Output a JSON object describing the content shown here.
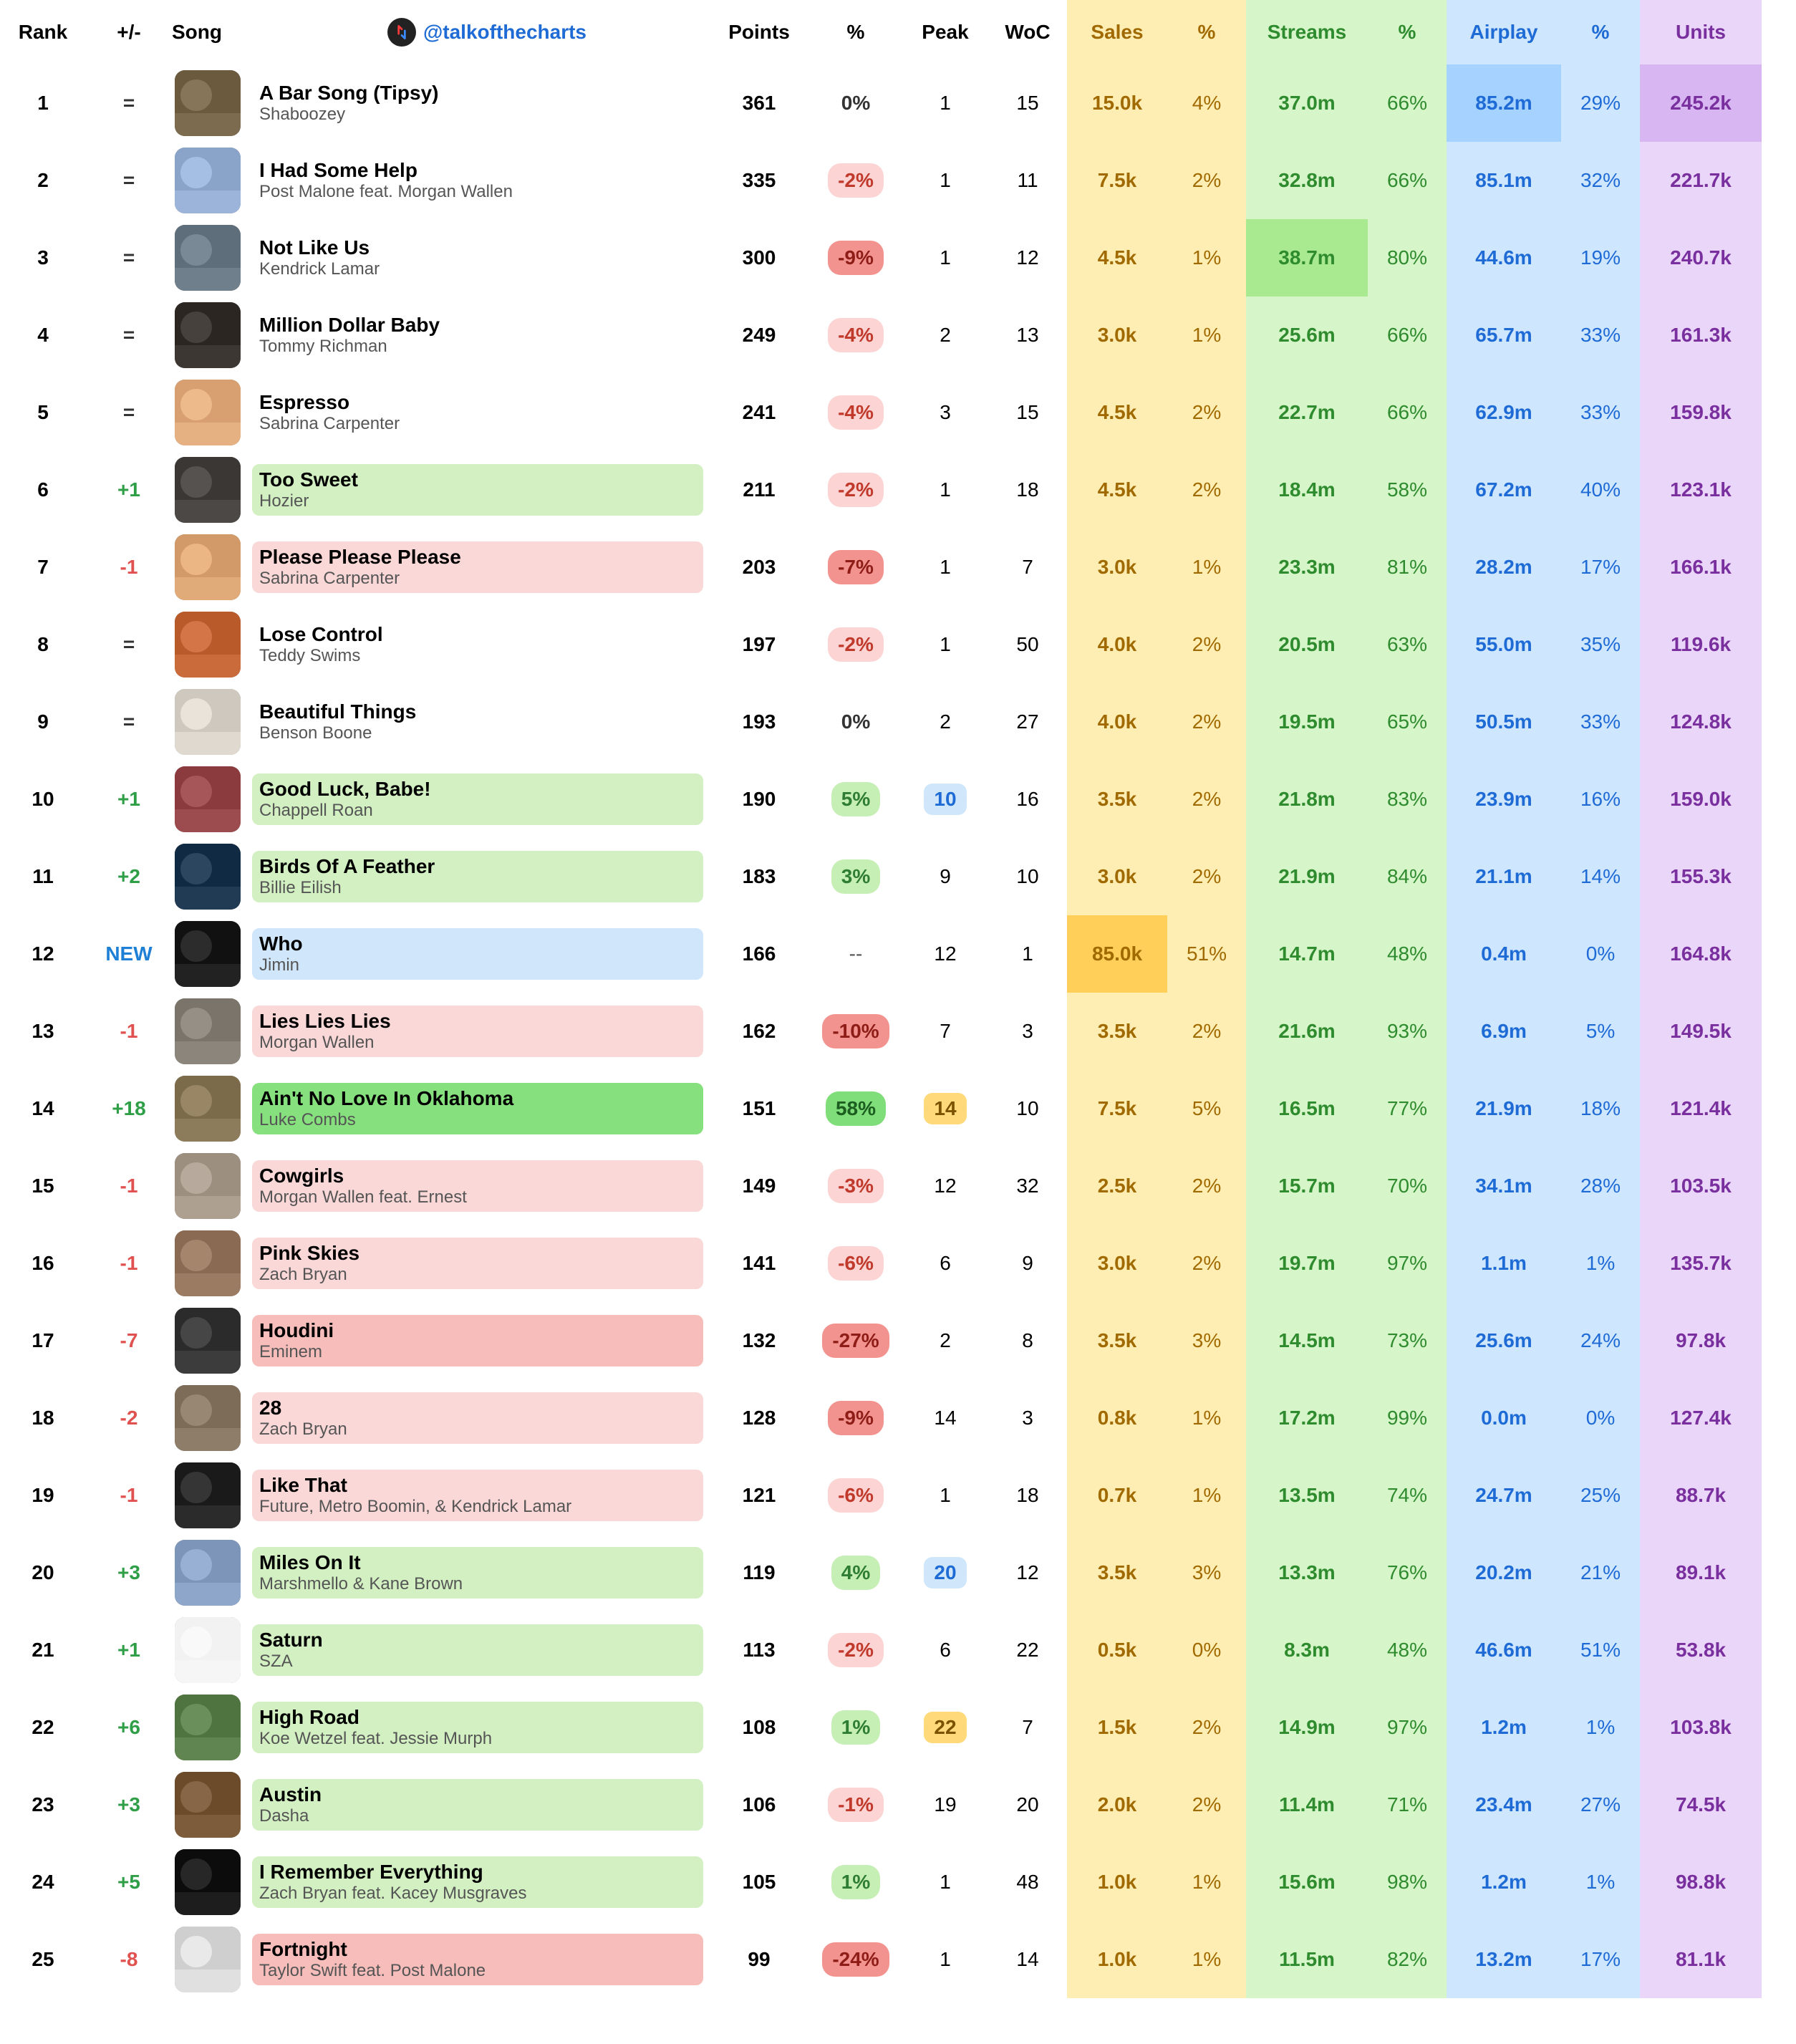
{
  "handle": "@talkofthecharts",
  "columns": {
    "rank": "Rank",
    "plus": "+/-",
    "song": "Song",
    "points": "Points",
    "pct": "%",
    "peak": "Peak",
    "woc": "WoC",
    "sales": "Sales",
    "salesp": "%",
    "streams": "Streams",
    "streamsp": "%",
    "airplay": "Airplay",
    "airplayp": "%",
    "units": "Units"
  },
  "colors": {
    "up": "#2e9e47",
    "down": "#e0524f",
    "new": "#1e7fd6",
    "neutral": "#333333",
    "pct_up_bg": "#c6efb6",
    "pct_up_strong_bg": "#7fdd7a",
    "pct_down_bg": "#fcd4d4",
    "pct_down_strong_bg": "#f2938f",
    "pct_zero": "#333333",
    "song_up_bg": "#d2f0c2",
    "song_up_strong_bg": "#87e07e",
    "song_down_bg": "#fbd8d8",
    "song_down_strong_bg": "#f6bdbb",
    "song_new_bg": "#cfe6fb",
    "peak_new_bg": "#cfe6fb",
    "peak_peak_bg": "#ffd97a",
    "sales_bg": "#ffeeb3",
    "streams_bg": "#d6f5c9",
    "airplay_bg": "#cfe6ff",
    "units_bg": "#e9d6f9",
    "sales_txt": "#a06a00",
    "streams_txt": "#2e8b2e",
    "airplay_txt": "#1e6bd6",
    "units_txt": "#7a2f9e",
    "sales_strong": "#ffcf5a",
    "streams_strong": "#a9e98f",
    "airplay_strong": "#a5d2ff",
    "units_strong": "#d7b6f2",
    "body_text": "#333333"
  },
  "covers": [
    "#6b5a3e",
    "#8aa3c8",
    "#5e6e7a",
    "#2b2622",
    "#d8a070",
    "#3b3734",
    "#d29a68",
    "#b85a2a",
    "#cfc8bf",
    "#8b3b3e",
    "#102a43",
    "#111111",
    "#7a746b",
    "#7c6b4a",
    "#9c8f80",
    "#8a6a52",
    "#2b2b2b",
    "#7d6c58",
    "#1a1a1a",
    "#7c95b8",
    "#f2f2f2",
    "#4f743f",
    "#6b4b2a",
    "#0c0c0c",
    "#cfcfcf"
  ],
  "rows": [
    {
      "rank": 1,
      "chg": "=",
      "title": "A Bar Song (Tipsy)",
      "artist": "Shaboozey",
      "points": 361,
      "pct": "0%",
      "pct_kind": "zero",
      "peak": 1,
      "woc": 15,
      "sales": "15.0k",
      "salesp": "4%",
      "streams": "37.0m",
      "streamsp": "66%",
      "airplay": "85.2m",
      "airplayp": "29%",
      "units": "245.2k",
      "hl": {
        "airplay": true,
        "units": true
      }
    },
    {
      "rank": 2,
      "chg": "=",
      "title": "I Had Some Help",
      "artist": "Post Malone feat. Morgan Wallen",
      "points": 335,
      "pct": "-2%",
      "pct_kind": "down",
      "peak": 1,
      "woc": 11,
      "sales": "7.5k",
      "salesp": "2%",
      "streams": "32.8m",
      "streamsp": "66%",
      "airplay": "85.1m",
      "airplayp": "32%",
      "units": "221.7k"
    },
    {
      "rank": 3,
      "chg": "=",
      "title": "Not Like Us",
      "artist": "Kendrick Lamar",
      "points": 300,
      "pct": "-9%",
      "pct_kind": "down-strong",
      "peak": 1,
      "woc": 12,
      "sales": "4.5k",
      "salesp": "1%",
      "streams": "38.7m",
      "streamsp": "80%",
      "airplay": "44.6m",
      "airplayp": "19%",
      "units": "240.7k",
      "hl": {
        "streams": true
      }
    },
    {
      "rank": 4,
      "chg": "=",
      "title": "Million Dollar Baby",
      "artist": "Tommy Richman",
      "points": 249,
      "pct": "-4%",
      "pct_kind": "down",
      "peak": 2,
      "woc": 13,
      "sales": "3.0k",
      "salesp": "1%",
      "streams": "25.6m",
      "streamsp": "66%",
      "airplay": "65.7m",
      "airplayp": "33%",
      "units": "161.3k"
    },
    {
      "rank": 5,
      "chg": "=",
      "title": "Espresso",
      "artist": "Sabrina Carpenter",
      "points": 241,
      "pct": "-4%",
      "pct_kind": "down",
      "peak": 3,
      "woc": 15,
      "sales": "4.5k",
      "salesp": "2%",
      "streams": "22.7m",
      "streamsp": "66%",
      "airplay": "62.9m",
      "airplayp": "33%",
      "units": "159.8k"
    },
    {
      "rank": 6,
      "chg": "+1",
      "title": "Too Sweet",
      "artist": "Hozier",
      "points": 211,
      "pct": "-2%",
      "pct_kind": "down",
      "peak": 1,
      "woc": 18,
      "sales": "4.5k",
      "salesp": "2%",
      "streams": "18.4m",
      "streamsp": "58%",
      "airplay": "67.2m",
      "airplayp": "40%",
      "units": "123.1k",
      "song_bg": "up"
    },
    {
      "rank": 7,
      "chg": "-1",
      "title": "Please Please Please",
      "artist": "Sabrina Carpenter",
      "points": 203,
      "pct": "-7%",
      "pct_kind": "down-strong",
      "peak": 1,
      "woc": 7,
      "sales": "3.0k",
      "salesp": "1%",
      "streams": "23.3m",
      "streamsp": "81%",
      "airplay": "28.2m",
      "airplayp": "17%",
      "units": "166.1k",
      "song_bg": "down"
    },
    {
      "rank": 8,
      "chg": "=",
      "title": "Lose Control",
      "artist": "Teddy Swims",
      "points": 197,
      "pct": "-2%",
      "pct_kind": "down",
      "peak": 1,
      "woc": 50,
      "sales": "4.0k",
      "salesp": "2%",
      "streams": "20.5m",
      "streamsp": "63%",
      "airplay": "55.0m",
      "airplayp": "35%",
      "units": "119.6k"
    },
    {
      "rank": 9,
      "chg": "=",
      "title": "Beautiful Things",
      "artist": "Benson Boone",
      "points": 193,
      "pct": "0%",
      "pct_kind": "zero",
      "peak": 2,
      "woc": 27,
      "sales": "4.0k",
      "salesp": "2%",
      "streams": "19.5m",
      "streamsp": "65%",
      "airplay": "50.5m",
      "airplayp": "33%",
      "units": "124.8k"
    },
    {
      "rank": 10,
      "chg": "+1",
      "title": "Good Luck, Babe!",
      "artist": "Chappell Roan",
      "points": 190,
      "pct": "5%",
      "pct_kind": "up",
      "peak": 10,
      "peak_kind": "new",
      "woc": 16,
      "sales": "3.5k",
      "salesp": "2%",
      "streams": "21.8m",
      "streamsp": "83%",
      "airplay": "23.9m",
      "airplayp": "16%",
      "units": "159.0k",
      "song_bg": "up"
    },
    {
      "rank": 11,
      "chg": "+2",
      "title": "Birds Of A Feather",
      "artist": "Billie Eilish",
      "points": 183,
      "pct": "3%",
      "pct_kind": "up",
      "peak": 9,
      "woc": 10,
      "sales": "3.0k",
      "salesp": "2%",
      "streams": "21.9m",
      "streamsp": "84%",
      "airplay": "21.1m",
      "airplayp": "14%",
      "units": "155.3k",
      "song_bg": "up"
    },
    {
      "rank": 12,
      "chg": "NEW",
      "title": "Who",
      "artist": "Jimin",
      "points": 166,
      "pct": "--",
      "pct_kind": "none",
      "peak": 12,
      "woc": 1,
      "sales": "85.0k",
      "salesp": "51%",
      "streams": "14.7m",
      "streamsp": "48%",
      "airplay": "0.4m",
      "airplayp": "0%",
      "units": "164.8k",
      "song_bg": "new",
      "hl": {
        "sales": true
      }
    },
    {
      "rank": 13,
      "chg": "-1",
      "title": "Lies Lies Lies",
      "artist": "Morgan Wallen",
      "points": 162,
      "pct": "-10%",
      "pct_kind": "down-strong",
      "peak": 7,
      "woc": 3,
      "sales": "3.5k",
      "salesp": "2%",
      "streams": "21.6m",
      "streamsp": "93%",
      "airplay": "6.9m",
      "airplayp": "5%",
      "units": "149.5k",
      "song_bg": "down"
    },
    {
      "rank": 14,
      "chg": "+18",
      "title": "Ain't No Love In Oklahoma",
      "artist": "Luke Combs",
      "points": 151,
      "pct": "58%",
      "pct_kind": "up-strong",
      "peak": 14,
      "peak_kind": "peak",
      "woc": 10,
      "sales": "7.5k",
      "salesp": "5%",
      "streams": "16.5m",
      "streamsp": "77%",
      "airplay": "21.9m",
      "airplayp": "18%",
      "units": "121.4k",
      "song_bg": "up-strong"
    },
    {
      "rank": 15,
      "chg": "-1",
      "title": "Cowgirls",
      "artist": "Morgan Wallen feat. Ernest",
      "points": 149,
      "pct": "-3%",
      "pct_kind": "down",
      "peak": 12,
      "woc": 32,
      "sales": "2.5k",
      "salesp": "2%",
      "streams": "15.7m",
      "streamsp": "70%",
      "airplay": "34.1m",
      "airplayp": "28%",
      "units": "103.5k",
      "song_bg": "down"
    },
    {
      "rank": 16,
      "chg": "-1",
      "title": "Pink Skies",
      "artist": "Zach Bryan",
      "points": 141,
      "pct": "-6%",
      "pct_kind": "down",
      "peak": 6,
      "woc": 9,
      "sales": "3.0k",
      "salesp": "2%",
      "streams": "19.7m",
      "streamsp": "97%",
      "airplay": "1.1m",
      "airplayp": "1%",
      "units": "135.7k",
      "song_bg": "down"
    },
    {
      "rank": 17,
      "chg": "-7",
      "title": "Houdini",
      "artist": "Eminem",
      "points": 132,
      "pct": "-27%",
      "pct_kind": "down-strong",
      "peak": 2,
      "woc": 8,
      "sales": "3.5k",
      "salesp": "3%",
      "streams": "14.5m",
      "streamsp": "73%",
      "airplay": "25.6m",
      "airplayp": "24%",
      "units": "97.8k",
      "song_bg": "down-strong"
    },
    {
      "rank": 18,
      "chg": "-2",
      "title": "28",
      "artist": "Zach Bryan",
      "points": 128,
      "pct": "-9%",
      "pct_kind": "down-strong",
      "peak": 14,
      "woc": 3,
      "sales": "0.8k",
      "salesp": "1%",
      "streams": "17.2m",
      "streamsp": "99%",
      "airplay": "0.0m",
      "airplayp": "0%",
      "units": "127.4k",
      "song_bg": "down"
    },
    {
      "rank": 19,
      "chg": "-1",
      "title": "Like That",
      "artist": "Future, Metro Boomin, & Kendrick Lamar",
      "points": 121,
      "pct": "-6%",
      "pct_kind": "down",
      "peak": 1,
      "woc": 18,
      "sales": "0.7k",
      "salesp": "1%",
      "streams": "13.5m",
      "streamsp": "74%",
      "airplay": "24.7m",
      "airplayp": "25%",
      "units": "88.7k",
      "song_bg": "down"
    },
    {
      "rank": 20,
      "chg": "+3",
      "title": "Miles On It",
      "artist": "Marshmello & Kane Brown",
      "points": 119,
      "pct": "4%",
      "pct_kind": "up",
      "peak": 20,
      "peak_kind": "new",
      "woc": 12,
      "sales": "3.5k",
      "salesp": "3%",
      "streams": "13.3m",
      "streamsp": "76%",
      "airplay": "20.2m",
      "airplayp": "21%",
      "units": "89.1k",
      "song_bg": "up"
    },
    {
      "rank": 21,
      "chg": "+1",
      "title": "Saturn",
      "artist": "SZA",
      "points": 113,
      "pct": "-2%",
      "pct_kind": "down",
      "peak": 6,
      "woc": 22,
      "sales": "0.5k",
      "salesp": "0%",
      "streams": "8.3m",
      "streamsp": "48%",
      "airplay": "46.6m",
      "airplayp": "51%",
      "units": "53.8k",
      "song_bg": "up"
    },
    {
      "rank": 22,
      "chg": "+6",
      "title": "High Road",
      "artist": "Koe Wetzel feat. Jessie Murph",
      "points": 108,
      "pct": "1%",
      "pct_kind": "up",
      "peak": 22,
      "peak_kind": "peak",
      "woc": 7,
      "sales": "1.5k",
      "salesp": "2%",
      "streams": "14.9m",
      "streamsp": "97%",
      "airplay": "1.2m",
      "airplayp": "1%",
      "units": "103.8k",
      "song_bg": "up"
    },
    {
      "rank": 23,
      "chg": "+3",
      "title": "Austin",
      "artist": "Dasha",
      "points": 106,
      "pct": "-1%",
      "pct_kind": "down",
      "peak": 19,
      "woc": 20,
      "sales": "2.0k",
      "salesp": "2%",
      "streams": "11.4m",
      "streamsp": "71%",
      "airplay": "23.4m",
      "airplayp": "27%",
      "units": "74.5k",
      "song_bg": "up"
    },
    {
      "rank": 24,
      "chg": "+5",
      "title": "I Remember Everything",
      "artist": "Zach Bryan feat. Kacey Musgraves",
      "points": 105,
      "pct": "1%",
      "pct_kind": "up",
      "peak": 1,
      "woc": 48,
      "sales": "1.0k",
      "salesp": "1%",
      "streams": "15.6m",
      "streamsp": "98%",
      "airplay": "1.2m",
      "airplayp": "1%",
      "units": "98.8k",
      "song_bg": "up"
    },
    {
      "rank": 25,
      "chg": "-8",
      "title": "Fortnight",
      "artist": "Taylor Swift feat. Post Malone",
      "points": 99,
      "pct": "-24%",
      "pct_kind": "down-strong",
      "peak": 1,
      "woc": 14,
      "sales": "1.0k",
      "salesp": "1%",
      "streams": "11.5m",
      "streamsp": "82%",
      "airplay": "13.2m",
      "airplayp": "17%",
      "units": "81.1k",
      "song_bg": "down-strong"
    }
  ]
}
